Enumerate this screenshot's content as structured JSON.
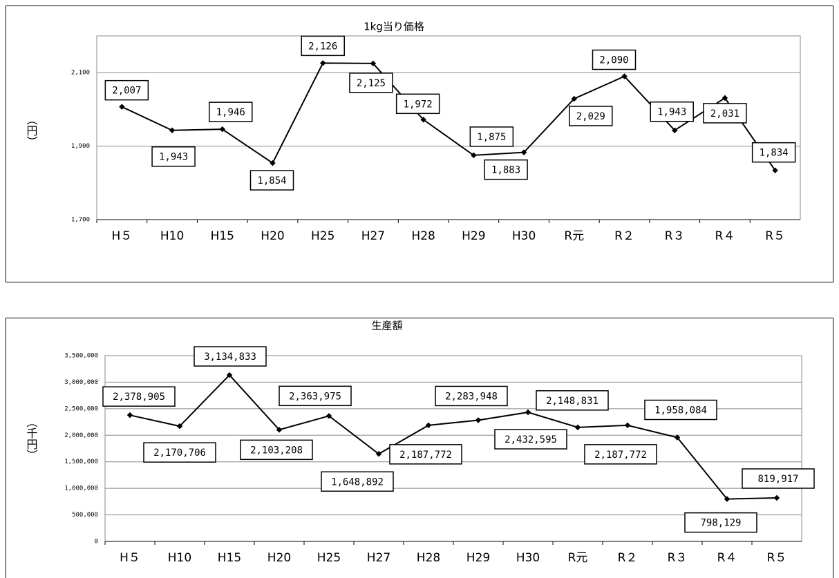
{
  "chart_data": [
    {
      "type": "line",
      "title": "1kg当り価格",
      "y_label": "（円）",
      "categories": [
        "H５",
        "H10",
        "H15",
        "H20",
        "H25",
        "H27",
        "H28",
        "H29",
        "H30",
        "R元",
        "R２",
        "R３",
        "R４",
        "R５"
      ],
      "series": [
        {
          "name": "1kg当り価格",
          "color": "#000000",
          "values": [
            2007,
            1943,
            1946,
            1854,
            2126,
            2125,
            1972,
            1875,
            1883,
            2029,
            2090,
            1943,
            2031,
            1834
          ],
          "value_labels": [
            "2,007",
            "1,943",
            "1,946",
            "1,854",
            "2,126",
            "2,125",
            "1,972",
            "1,875",
            "1,883",
            "2,029",
            "2,090",
            "1,943",
            "2,031",
            "1,834"
          ]
        }
      ],
      "ylim": [
        1700,
        2200
      ],
      "yticks": [
        {
          "value": 1700,
          "label": "1,700"
        },
        {
          "value": 1900,
          "label": "1,900"
        },
        {
          "value": 2100,
          "label": "2,100"
        }
      ],
      "grid": true
    },
    {
      "type": "line",
      "title": "生産額",
      "y_label": "（千円）",
      "categories": [
        "H５",
        "H10",
        "H15",
        "H20",
        "H25",
        "H27",
        "H28",
        "H29",
        "H30",
        "R元",
        "R２",
        "R３",
        "R４",
        "R５"
      ],
      "series": [
        {
          "name": "生産額",
          "color": "#000000",
          "values": [
            2378905,
            2170706,
            3134833,
            2103208,
            2363975,
            1648892,
            2187772,
            2283948,
            2432595,
            2148831,
            2187772,
            1958084,
            798129,
            819917
          ],
          "value_labels": [
            "2,378,905",
            "2,170,706",
            "3,134,833",
            "2,103,208",
            "2,363,975",
            "1,648,892",
            "2,187,772",
            "2,283,948",
            "2,432,595",
            "2,148,831",
            "2,187,772",
            "1,958,084",
            "798,129",
            "819,917"
          ]
        }
      ],
      "ylim": [
        0,
        3500000
      ],
      "yticks": [
        0,
        {
          "value": 500000,
          "label": "500,000"
        },
        {
          "value": 1000000,
          "label": "1,000,000"
        },
        {
          "value": 1500000,
          "label": "1,500,000"
        },
        {
          "value": 2000000,
          "label": "2,000,000"
        },
        {
          "value": 2500000,
          "label": "2,500,000"
        },
        {
          "value": 3000000,
          "label": "3,000,000"
        },
        {
          "value": 3500000,
          "label": "3,500,000"
        }
      ],
      "grid": true
    }
  ]
}
